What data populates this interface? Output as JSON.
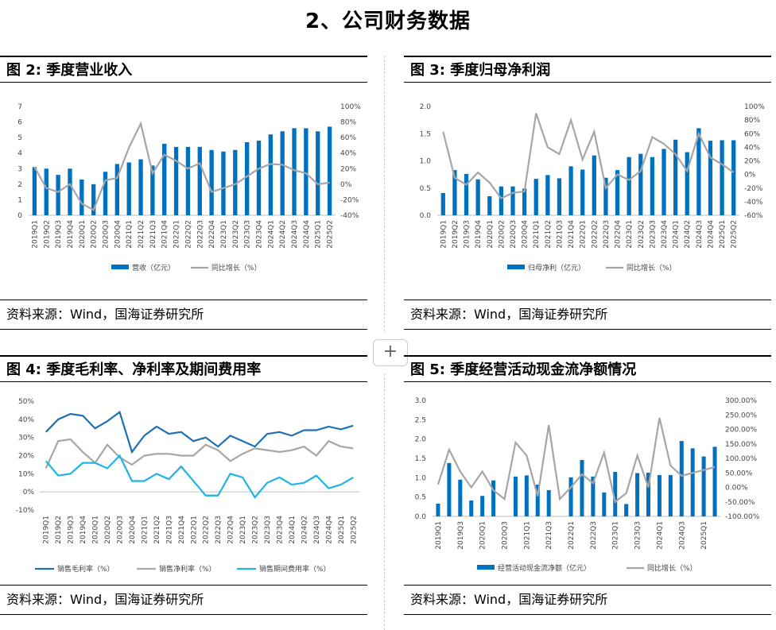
{
  "page": {
    "title": "2、公司财务数据",
    "plus": "+"
  },
  "colors": {
    "bar": "#0070c0",
    "grey": "#a6a6a6",
    "dark_blue": "#1f6fb4",
    "light_blue": "#1eb4e6"
  },
  "panels": [
    {
      "title": "图 2:  季度营业收入",
      "source": "资料来源：Wind，国海证券研究所"
    },
    {
      "title": "图 3:  季度归母净利润",
      "source": "资料来源：Wind，国海证券研究所"
    },
    {
      "title": "图 4:  季度毛利率、净利率及期间费用率",
      "source": "资料来源：Wind，国海证券研究所"
    },
    {
      "title": "图 5:  季度经营活动现金流净额情况",
      "source": "资料来源：Wind，国海证券研究所"
    }
  ],
  "chart_data": [
    {
      "type": "bar+line",
      "categories": [
        "2019Q1",
        "2019Q2",
        "2019Q3",
        "2019Q4",
        "2020Q1",
        "2020Q2",
        "2020Q3",
        "2020Q4",
        "2021Q1",
        "2021Q2",
        "2021Q3",
        "2021Q4",
        "2022Q1",
        "2022Q2",
        "2022Q3",
        "2022Q4",
        "2023Q1",
        "2023Q2",
        "2023Q3",
        "2023Q4",
        "2024Q1",
        "2024Q2",
        "2024Q3",
        "2024Q4",
        "2025Q1",
        "2025Q2"
      ],
      "left_axis": {
        "min": 0,
        "max": 7,
        "ticks": [
          "0",
          "1",
          "2",
          "3",
          "4",
          "5",
          "6",
          "7"
        ]
      },
      "right_axis": {
        "min": -40,
        "max": 100,
        "ticks": [
          "-40%",
          "-20%",
          "0%",
          "20%",
          "40%",
          "60%",
          "80%",
          "100%"
        ]
      },
      "series": [
        {
          "name": "营收（亿元）",
          "type": "bar",
          "axis": "left",
          "values": [
            3.1,
            3.0,
            2.6,
            3.0,
            2.3,
            2.0,
            2.8,
            3.3,
            3.4,
            3.6,
            3.2,
            4.6,
            4.4,
            4.4,
            4.4,
            4.2,
            4.1,
            4.2,
            4.7,
            4.8,
            5.2,
            5.4,
            5.6,
            5.6,
            5.4,
            5.7
          ]
        },
        {
          "name": "同比增长（%）",
          "type": "line",
          "axis": "right",
          "values": [
            22,
            -5,
            -10,
            0,
            -25,
            -33,
            5,
            8,
            47,
            78,
            14,
            38,
            30,
            20,
            27,
            -10,
            -5,
            0,
            10,
            20,
            26,
            25,
            18,
            14,
            0,
            2
          ]
        }
      ]
    },
    {
      "type": "bar+line",
      "categories": [
        "2019Q1",
        "2019Q2",
        "2019Q3",
        "2019Q4",
        "2020Q1",
        "2020Q2",
        "2020Q3",
        "2020Q4",
        "2021Q1",
        "2021Q2",
        "2021Q3",
        "2021Q4",
        "2022Q1",
        "2022Q2",
        "2022Q3",
        "2022Q4",
        "2023Q1",
        "2023Q2",
        "2023Q3",
        "2023Q4",
        "2024Q1",
        "2024Q2",
        "2024Q3",
        "2024Q4",
        "2025Q1",
        "2025Q2"
      ],
      "left_axis": {
        "min": 0,
        "max": 2,
        "ticks": [
          "0.0",
          "0.5",
          "1.0",
          "1.5",
          "2.0"
        ]
      },
      "right_axis": {
        "min": -60,
        "max": 100,
        "ticks": [
          "-60%",
          "-40%",
          "-20%",
          "0%",
          "20%",
          "40%",
          "60%",
          "80%",
          "100%"
        ]
      },
      "series": [
        {
          "name": "归母净利（亿元）",
          "type": "bar",
          "axis": "left",
          "values": [
            0.41,
            0.83,
            0.76,
            0.66,
            0.35,
            0.53,
            0.53,
            0.49,
            0.67,
            0.74,
            0.68,
            0.9,
            0.84,
            1.1,
            0.69,
            0.83,
            1.07,
            1.13,
            1.07,
            1.22,
            1.39,
            1.16,
            1.6,
            1.37,
            1.38,
            1.38
          ]
        },
        {
          "name": "同比增长（%）",
          "type": "line",
          "axis": "right",
          "values": [
            63,
            -5,
            -15,
            3,
            -12,
            -35,
            -27,
            -25,
            90,
            40,
            30,
            80,
            22,
            63,
            -20,
            0,
            -8,
            5,
            55,
            45,
            30,
            5,
            60,
            25,
            15,
            3
          ]
        }
      ]
    },
    {
      "type": "line",
      "categories": [
        "2019Q1",
        "2019Q2",
        "2019Q3",
        "2019Q4",
        "2020Q1",
        "2020Q2",
        "2020Q3",
        "2020Q4",
        "2021Q1",
        "2021Q2",
        "2021Q3",
        "2021Q4",
        "2022Q1",
        "2022Q2",
        "2022Q3",
        "2022Q4",
        "2023Q1",
        "2023Q2",
        "2023Q3",
        "2023Q4",
        "2024Q1",
        "2024Q2",
        "2024Q3",
        "2024Q4",
        "2025Q1",
        "2025Q2"
      ],
      "y_axis": {
        "min": -10,
        "max": 50,
        "ticks": [
          "-10%",
          "0%",
          "10%",
          "20%",
          "30%",
          "40%",
          "50%"
        ]
      },
      "series": [
        {
          "name": "销售毛利率（%）",
          "values": [
            33,
            40,
            43,
            42,
            35,
            39,
            44,
            22,
            31,
            36,
            32,
            33,
            28,
            30,
            25,
            31,
            28,
            25,
            32,
            33,
            31,
            34,
            34,
            36,
            34.5,
            36.5
          ]
        },
        {
          "name": "销售净利率（%）",
          "values": [
            13,
            28,
            29,
            22,
            16,
            26,
            19,
            15,
            20,
            21,
            21,
            20,
            20,
            26,
            23,
            17,
            21,
            24,
            23,
            22,
            23,
            25,
            20,
            28,
            25,
            24
          ]
        },
        {
          "name": "销售期间费用率（%）",
          "values": [
            17,
            9,
            10,
            16,
            16,
            13,
            20,
            6,
            6,
            10,
            7,
            14,
            6,
            -2,
            -2,
            10,
            8,
            -3,
            5,
            8,
            4,
            5,
            9,
            2,
            4,
            8
          ]
        }
      ]
    },
    {
      "type": "bar+line",
      "categories": [
        "2019Q1",
        "2019Q2",
        "2019Q3",
        "2019Q4",
        "2020Q1",
        "2020Q2",
        "2020Q3",
        "2020Q4",
        "2021Q1",
        "2021Q2",
        "2021Q3",
        "2021Q4",
        "2022Q1",
        "2022Q2",
        "2022Q3",
        "2022Q4",
        "2023Q1",
        "2023Q2",
        "2023Q3",
        "2023Q4",
        "2024Q1",
        "2024Q2",
        "2024Q3",
        "2024Q4",
        "2025Q1",
        "2025Q2"
      ],
      "x_tick_labels": [
        "2019Q1",
        "2019Q3",
        "2020Q1",
        "2020Q3",
        "2021Q1",
        "2021Q3",
        "2022Q1",
        "2022Q3",
        "2023Q1",
        "2023Q3",
        "2024Q1",
        "2024Q3",
        "2025Q1"
      ],
      "left_axis": {
        "min": 0,
        "max": 3,
        "ticks": [
          "0.0",
          "0.5",
          "1.0",
          "1.5",
          "2.0",
          "2.5",
          "3.0"
        ]
      },
      "right_axis": {
        "min": -100,
        "max": 300,
        "ticks": [
          "-100.00%",
          "-50.00%",
          "0.00%",
          "50.00%",
          "100.00%",
          "150.00%",
          "200.00%",
          "250.00%",
          "300.00%"
        ]
      },
      "series": [
        {
          "name": "经营活动现金流净额（亿元）",
          "type": "bar",
          "axis": "left",
          "values": [
            0.33,
            1.38,
            0.95,
            0.41,
            0.53,
            0.93,
            0.0,
            1.03,
            1.06,
            0.82,
            0.68,
            0.0,
            1.01,
            1.46,
            1.03,
            0.62,
            1.15,
            0.32,
            1.12,
            1.13,
            1.07,
            1.07,
            1.95,
            1.76,
            1.55,
            1.8
          ]
        },
        {
          "name": "同比增长（%）",
          "type": "line",
          "axis": "right",
          "values": [
            10,
            130,
            55,
            0,
            55,
            -10,
            -40,
            155,
            110,
            -30,
            215,
            -40,
            0,
            45,
            15,
            120,
            -50,
            -20,
            110,
            0,
            240,
            75,
            40,
            50,
            60,
            70
          ]
        }
      ]
    }
  ]
}
